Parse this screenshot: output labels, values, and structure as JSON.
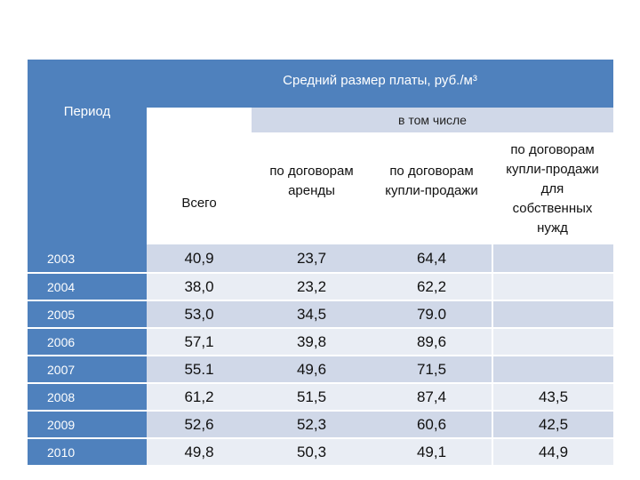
{
  "table": {
    "period_label": "Период",
    "title": "Средний размер платы, руб./м³",
    "including_label": "в том числе",
    "col_total": "Всего",
    "col_rent": "по договорам\nаренды",
    "col_sale": "по договорам\nкупли-продажи",
    "col_own": "по договорам\nкупли-продажи\nдля\nсобственных\nнужд",
    "rows": [
      {
        "year": "2003",
        "total": "40,9",
        "rent": "23,7",
        "sale": "64,4",
        "own": ""
      },
      {
        "year": "2004",
        "total": "38,0",
        "rent": "23,2",
        "sale": "62,2",
        "own": ""
      },
      {
        "year": "2005",
        "total": "53,0",
        "rent": "34,5",
        "sale": "79.0",
        "own": ""
      },
      {
        "year": "2006",
        "total": "57,1",
        "rent": "39,8",
        "sale": "89,6",
        "own": ""
      },
      {
        "year": "2007",
        "total": "55.1",
        "rent": "49,6",
        "sale": "71,5",
        "own": ""
      },
      {
        "year": "2008",
        "total": "61,2",
        "rent": "51,5",
        "sale": "87,4",
        "own": "43,5"
      },
      {
        "year": "2009",
        "total": "52,6",
        "rent": "52,3",
        "sale": "60,6",
        "own": "42,5"
      },
      {
        "year": "2010",
        "total": "49,8",
        "rent": "50,3",
        "sale": "49,1",
        "own": "44,9"
      }
    ]
  },
  "colors": {
    "header_blue": "#4f81bd",
    "row_odd": "#d0d8e8",
    "row_even": "#e9edf4"
  }
}
